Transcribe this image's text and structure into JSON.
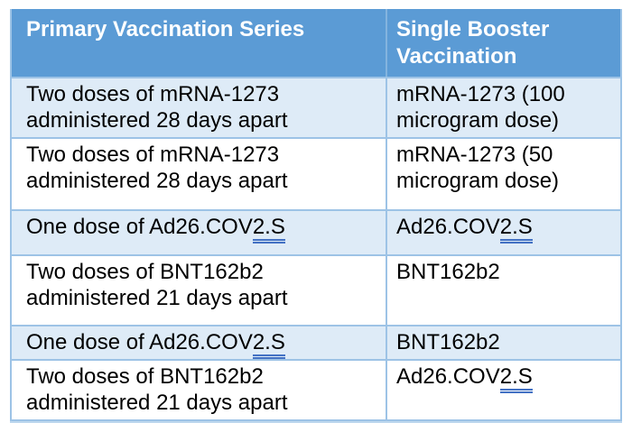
{
  "colors": {
    "header_bg": "#5b9bd5",
    "header_text": "#ffffff",
    "row_alt_bg": "#deebf7",
    "row_bg": "#ffffff",
    "border": "#9dc3e6",
    "body_text": "#000000",
    "underline": "#4472c4",
    "bottom_strip": "#bdd7ee"
  },
  "table": {
    "headers": {
      "primary": "Primary Vaccination Series",
      "booster": "Single Booster Vaccination"
    },
    "rows": [
      {
        "primary": {
          "pre": "Two doses of mRNA-1273 administered 28 days apart",
          "u": "",
          "post": ""
        },
        "booster": {
          "pre": "mRNA-1273 (100 microgram dose)",
          "u": "",
          "post": ""
        }
      },
      {
        "primary": {
          "pre": "Two doses of mRNA-1273 administered 28 days apart",
          "u": "",
          "post": ""
        },
        "booster": {
          "pre": "mRNA-1273 (50 microgram dose)",
          "u": "",
          "post": ""
        }
      },
      {
        "primary": {
          "pre": "One dose of Ad26.COV",
          "u": "2.S",
          "post": ""
        },
        "booster": {
          "pre": "Ad26.COV",
          "u": "2.S",
          "post": ""
        }
      },
      {
        "primary": {
          "pre": "Two doses of BNT162b2 administered 21 days apart",
          "u": "",
          "post": ""
        },
        "booster": {
          "pre": "BNT162b2",
          "u": "",
          "post": ""
        }
      },
      {
        "primary": {
          "pre": "One dose of Ad26.COV",
          "u": "2.S",
          "post": ""
        },
        "booster": {
          "pre": "BNT162b2",
          "u": "",
          "post": ""
        }
      },
      {
        "primary": {
          "pre": "Two doses of BNT162b2 administered 21 days apart",
          "u": "",
          "post": ""
        },
        "booster": {
          "pre": "Ad26.COV",
          "u": "2.S",
          "post": ""
        }
      }
    ]
  }
}
